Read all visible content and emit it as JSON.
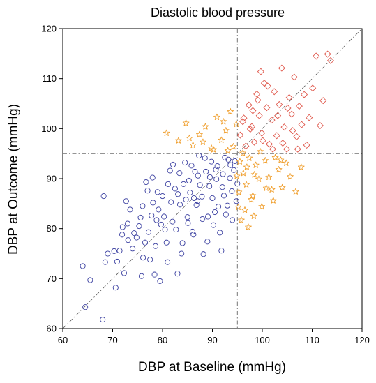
{
  "chart_data": {
    "type": "scatter",
    "title": "Diastolic blood pressure",
    "xlabel": "DBP at Baseline (mmHg)",
    "ylabel": "DBP at Outcome (mmHg)",
    "xlim": [
      60,
      120
    ],
    "ylim": [
      60,
      120
    ],
    "xticks": [
      60,
      70,
      80,
      90,
      100,
      110,
      120
    ],
    "yticks": [
      60,
      70,
      80,
      90,
      100,
      110,
      120
    ],
    "reference_lines": {
      "identity_diagonal": true,
      "vertical_x": 95,
      "horizontal_y": 95,
      "style": "dash-dot"
    },
    "grid": false,
    "legend": "none",
    "series": [
      {
        "marker": "circle",
        "color": "#3a3fa0",
        "points": [
          [
            64,
            72.5
          ],
          [
            64.5,
            64.3
          ],
          [
            65.5,
            69.7
          ],
          [
            68,
            61.8
          ],
          [
            68.2,
            86.5
          ],
          [
            68.5,
            73.3
          ],
          [
            69,
            75
          ],
          [
            70.3,
            75.5
          ],
          [
            70.6,
            68.2
          ],
          [
            71.4,
            75.6
          ],
          [
            72,
            80.3
          ],
          [
            72.3,
            71.1
          ],
          [
            72.7,
            85.5
          ],
          [
            73,
            81
          ],
          [
            73.5,
            83.8
          ],
          [
            74,
            76
          ],
          [
            74.8,
            78.2
          ],
          [
            75.3,
            80.5
          ],
          [
            75.8,
            70.5
          ],
          [
            76,
            84.5
          ],
          [
            76.5,
            77.2
          ],
          [
            77,
            87.6
          ],
          [
            77.5,
            73.8
          ],
          [
            78,
            90.2
          ],
          [
            78.4,
            70.8
          ],
          [
            78.8,
            81.7
          ],
          [
            79.5,
            69.5
          ],
          [
            80,
            86.5
          ],
          [
            80.5,
            79.8
          ],
          [
            81,
            73.3
          ],
          [
            81.5,
            91.6
          ],
          [
            82,
            81.4
          ],
          [
            82.5,
            88
          ],
          [
            83,
            71
          ],
          [
            83.5,
            84.8
          ],
          [
            84,
            77.1
          ],
          [
            84.5,
            93.2
          ],
          [
            85,
            82.3
          ],
          [
            85.5,
            87.2
          ],
          [
            86,
            79.4
          ],
          [
            86.5,
            91.4
          ],
          [
            87,
            85.5
          ],
          [
            87.5,
            88.7
          ],
          [
            88,
            81.9
          ],
          [
            88.5,
            94.1
          ],
          [
            89,
            77.4
          ],
          [
            89.5,
            90.3
          ],
          [
            90,
            86.1
          ],
          [
            90.5,
            83.3
          ],
          [
            91,
            92.5
          ],
          [
            91.5,
            79.2
          ],
          [
            92,
            88.3
          ],
          [
            92.5,
            94.2
          ],
          [
            93,
            84.6
          ],
          [
            93.5,
            90.1
          ],
          [
            94,
            81.7
          ],
          [
            94.5,
            93.5
          ],
          [
            95,
            89
          ],
          [
            94.8,
            85.5
          ],
          [
            91.8,
            75.6
          ],
          [
            88.2,
            74.9
          ],
          [
            86.2,
            78.8
          ],
          [
            83.8,
            75
          ],
          [
            82.7,
            79.8
          ],
          [
            80.8,
            77.2
          ],
          [
            79.2,
            83.8
          ],
          [
            77.8,
            82.6
          ],
          [
            76.7,
            89.3
          ],
          [
            84.2,
            88.9
          ],
          [
            85.8,
            92.6
          ],
          [
            87.3,
            94.6
          ],
          [
            89.8,
            93.4
          ],
          [
            90.8,
            89.9
          ],
          [
            92.3,
            86.6
          ],
          [
            93.6,
            92.7
          ],
          [
            86.8,
            84.7
          ],
          [
            85.1,
            81.1
          ],
          [
            83.1,
            86.9
          ],
          [
            81.7,
            85.3
          ],
          [
            80.3,
            82.4
          ],
          [
            79,
            87.3
          ],
          [
            78.1,
            85.2
          ],
          [
            87.9,
            86.4
          ],
          [
            89.1,
            82.4
          ],
          [
            90.2,
            80.7
          ],
          [
            91.2,
            84.4
          ],
          [
            92.7,
            82.8
          ],
          [
            93.9,
            87.5
          ],
          [
            94.3,
            91.7
          ],
          [
            88.7,
            91.4
          ],
          [
            87.1,
            90.6
          ],
          [
            85.3,
            89.6
          ],
          [
            83.4,
            91.1
          ],
          [
            82.1,
            92.8
          ],
          [
            84.7,
            85.8
          ],
          [
            86.3,
            86.1
          ],
          [
            89.4,
            88.5
          ],
          [
            90.7,
            91.8
          ],
          [
            92.1,
            90.9
          ],
          [
            93.2,
            93.8
          ],
          [
            81.1,
            88.9
          ],
          [
            79.7,
            80.8
          ],
          [
            77.2,
            79.3
          ],
          [
            75.6,
            82.2
          ],
          [
            74.3,
            79.1
          ],
          [
            73.1,
            77.7
          ],
          [
            71.9,
            78.8
          ],
          [
            70.9,
            73.4
          ],
          [
            76.1,
            74.2
          ],
          [
            78.6,
            76.5
          ]
        ]
      },
      {
        "marker": "star",
        "color": "#f0a030",
        "points": [
          [
            80.8,
            99.1
          ],
          [
            83.2,
            97.6
          ],
          [
            84.7,
            101.1
          ],
          [
            86.1,
            96.7
          ],
          [
            87.4,
            98.8
          ],
          [
            88.6,
            100.4
          ],
          [
            89.8,
            96.1
          ],
          [
            90.9,
            102.3
          ],
          [
            91.8,
            97.7
          ],
          [
            92.7,
            99.6
          ],
          [
            93.6,
            103.4
          ],
          [
            94.2,
            96.4
          ],
          [
            94.8,
            100.9
          ],
          [
            85.4,
            98.1
          ],
          [
            88.1,
            97.3
          ],
          [
            90.2,
            95.8
          ],
          [
            92.2,
            101.4
          ],
          [
            93.1,
            95.6
          ],
          [
            95.5,
            93.4
          ],
          [
            96.2,
            91.1
          ],
          [
            96.8,
            88.8
          ],
          [
            97.4,
            94.1
          ],
          [
            98.1,
            86.6
          ],
          [
            98.7,
            92.7
          ],
          [
            99.3,
            89.9
          ],
          [
            99.9,
            84.4
          ],
          [
            100.6,
            93.6
          ],
          [
            101.3,
            90.3
          ],
          [
            101.9,
            87.8
          ],
          [
            102.6,
            94.2
          ],
          [
            103.3,
            91.8
          ],
          [
            104,
            88.2
          ],
          [
            104.8,
            93.1
          ],
          [
            105.6,
            90.4
          ],
          [
            106.7,
            87.4
          ],
          [
            107.8,
            92.3
          ],
          [
            95.8,
            81.7
          ],
          [
            96.5,
            83.7
          ],
          [
            97.2,
            80.3
          ],
          [
            98.3,
            82.5
          ],
          [
            97.8,
            85.8
          ],
          [
            99.6,
            95.4
          ],
          [
            100.8,
            88.1
          ],
          [
            102.2,
            85.6
          ],
          [
            103.7,
            93.7
          ],
          [
            95.3,
            87.3
          ],
          [
            96.1,
            95.1
          ],
          [
            96.9,
            92.3
          ],
          [
            98.4,
            90.8
          ],
          [
            94.9,
            90.5
          ],
          [
            95.2,
            84.3
          ]
        ]
      },
      {
        "marker": "diamond",
        "color": "#e05a4e",
        "points": [
          [
            95.6,
            98.7
          ],
          [
            96.3,
            102.1
          ],
          [
            96.7,
            96.5
          ],
          [
            97.3,
            104.7
          ],
          [
            97.9,
            100.4
          ],
          [
            98.4,
            97.3
          ],
          [
            98.9,
            106.9
          ],
          [
            99.4,
            102.6
          ],
          [
            99.9,
            99.1
          ],
          [
            100.4,
            109.1
          ],
          [
            100.9,
            104.2
          ],
          [
            101.4,
            96.9
          ],
          [
            101.9,
            101.7
          ],
          [
            102.4,
            107.4
          ],
          [
            102.9,
            98.6
          ],
          [
            103.4,
            104.8
          ],
          [
            103.9,
            112.1
          ],
          [
            104.4,
            100.3
          ],
          [
            104.9,
            95.9
          ],
          [
            105.4,
            106.2
          ],
          [
            105.9,
            102.9
          ],
          [
            106.4,
            110.3
          ],
          [
            106.9,
            98.4
          ],
          [
            107.4,
            104.5
          ],
          [
            107.9,
            100.8
          ],
          [
            108.4,
            106.8
          ],
          [
            108.9,
            96.7
          ],
          [
            109.4,
            102.2
          ],
          [
            110.1,
            108.1
          ],
          [
            110.8,
            114.5
          ],
          [
            111.6,
            100.6
          ],
          [
            112.2,
            105.6
          ],
          [
            113.1,
            114.9
          ],
          [
            113.7,
            113.6
          ],
          [
            99.7,
            111.4
          ],
          [
            101.1,
            108.5
          ],
          [
            97.6,
            99.9
          ],
          [
            96.1,
            101.4
          ],
          [
            98.1,
            103.6
          ],
          [
            100.1,
            97.6
          ],
          [
            102.1,
            95.9
          ],
          [
            104.1,
            97.1
          ],
          [
            106.1,
            99.6
          ],
          [
            99.1,
            105.7
          ],
          [
            103.1,
            102.6
          ],
          [
            105.1,
            104.1
          ],
          [
            107.1,
            95.9
          ]
        ]
      }
    ]
  }
}
